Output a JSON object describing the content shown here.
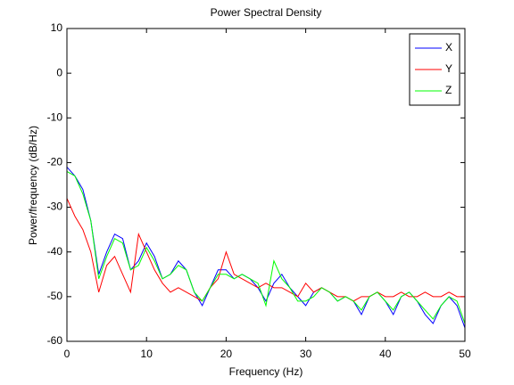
{
  "chart_data": {
    "type": "line",
    "title": "Power Spectral Density",
    "x_label": "Frequency (Hz)",
    "y_label": "Power/frequency (dB/Hz)",
    "x": [
      0,
      1,
      2,
      3,
      4,
      5,
      6,
      7,
      8,
      9,
      10,
      11,
      12,
      13,
      14,
      15,
      16,
      17,
      18,
      19,
      20,
      21,
      22,
      23,
      24,
      25,
      26,
      27,
      28,
      29,
      30,
      31,
      32,
      33,
      34,
      35,
      36,
      37,
      38,
      39,
      40,
      41,
      42,
      43,
      44,
      45,
      46,
      47,
      48,
      49,
      50
    ],
    "series": [
      {
        "name": "X",
        "color": "#0000ff",
        "values": [
          -21,
          -23,
          -26,
          -33,
          -45,
          -40,
          -36,
          -37,
          -44,
          -42,
          -38,
          -41,
          -46,
          -45,
          -42,
          -44,
          -49,
          -52,
          -48,
          -44,
          -44,
          -46,
          -45,
          -46,
          -48,
          -51,
          -47,
          -45,
          -48,
          -50,
          -52,
          -49,
          -48,
          -49,
          -51,
          -50,
          -51,
          -54,
          -50,
          -49,
          -51,
          -54,
          -50,
          -49,
          -51,
          -54,
          -56,
          -52,
          -50,
          -52,
          -57
        ]
      },
      {
        "name": "Y",
        "color": "#ff0000",
        "values": [
          -28,
          -32,
          -35,
          -40,
          -49,
          -43,
          -41,
          -45,
          -49,
          -36,
          -40,
          -44,
          -47,
          -49,
          -48,
          -49,
          -50,
          -51,
          -48,
          -46,
          -40,
          -45,
          -46,
          -47,
          -48,
          -47,
          -48,
          -48,
          -49,
          -50,
          -47,
          -49,
          -48,
          -49,
          -50,
          -50,
          -51,
          -50,
          -50,
          -49,
          -50,
          -50,
          -49,
          -50,
          -50,
          -49,
          -50,
          -50,
          -49,
          -50,
          -50
        ]
      },
      {
        "name": "Z",
        "color": "#00ff00",
        "values": [
          -22,
          -23,
          -27,
          -33,
          -46,
          -41,
          -37,
          -38,
          -44,
          -43,
          -39,
          -42,
          -46,
          -45,
          -43,
          -44,
          -49,
          -51,
          -48,
          -45,
          -45,
          -46,
          -45,
          -46,
          -47,
          -52,
          -42,
          -46,
          -48,
          -51,
          -51,
          -50,
          -48,
          -49,
          -51,
          -50,
          -51,
          -53,
          -50,
          -49,
          -51,
          -53,
          -50,
          -49,
          -51,
          -53,
          -55,
          -52,
          -50,
          -51,
          -56
        ]
      }
    ],
    "xlim": [
      0,
      50
    ],
    "xticks": [
      0,
      10,
      20,
      30,
      40,
      50
    ],
    "ylim": [
      -60,
      10
    ],
    "yticks": [
      -60,
      -50,
      -40,
      -30,
      -20,
      -10,
      0,
      10
    ],
    "legend": "upper right"
  }
}
